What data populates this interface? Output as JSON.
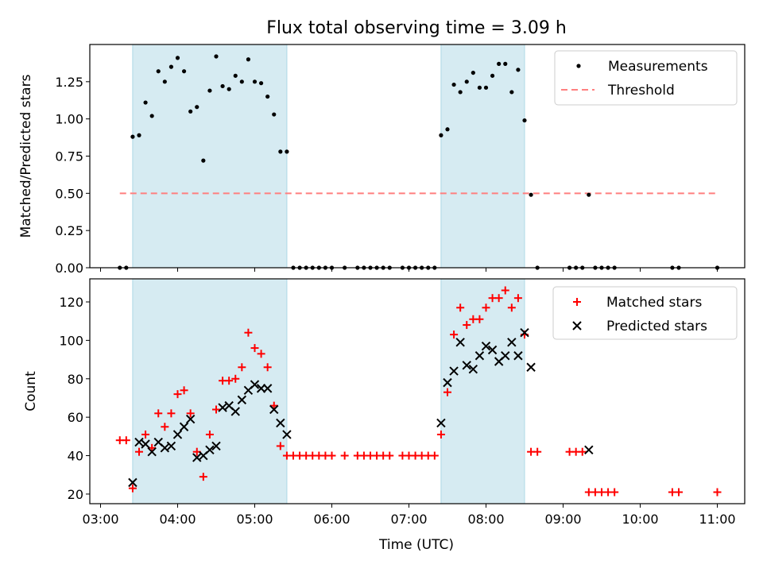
{
  "chart_data": [
    {
      "type": "scatter",
      "title": "Flux total observing time = 3.09 h",
      "ylabel": "Matched/Predicted stars",
      "ylim": [
        0,
        1.5
      ],
      "xlim": [
        "03:00",
        "11:00"
      ],
      "yticks": [
        "0.00",
        "0.25",
        "0.50",
        "0.75",
        "1.00",
        "1.25"
      ],
      "legend_placement": "top-right",
      "shaded_spans": [
        [
          "03:25",
          "05:25"
        ],
        [
          "07:25",
          "08:30"
        ]
      ],
      "threshold": {
        "name": "Threshold",
        "value": 0.5,
        "x_range": [
          "03:15",
          "11:00"
        ],
        "color": "#ff7f7f"
      },
      "series": [
        {
          "name": "Measurements",
          "color": "#000000",
          "points": [
            [
              "03:15",
              0.0
            ],
            [
              "03:20",
              0.0
            ],
            [
              "03:25",
              0.88
            ],
            [
              "03:30",
              0.89
            ],
            [
              "03:35",
              1.11
            ],
            [
              "03:40",
              1.02
            ],
            [
              "03:45",
              1.32
            ],
            [
              "03:50",
              1.25
            ],
            [
              "03:55",
              1.35
            ],
            [
              "04:00",
              1.41
            ],
            [
              "04:05",
              1.32
            ],
            [
              "04:10",
              1.05
            ],
            [
              "04:15",
              1.08
            ],
            [
              "04:20",
              0.72
            ],
            [
              "04:25",
              1.19
            ],
            [
              "04:30",
              1.42
            ],
            [
              "04:35",
              1.22
            ],
            [
              "04:40",
              1.2
            ],
            [
              "04:45",
              1.29
            ],
            [
              "04:50",
              1.25
            ],
            [
              "04:55",
              1.4
            ],
            [
              "05:00",
              1.25
            ],
            [
              "05:05",
              1.24
            ],
            [
              "05:10",
              1.15
            ],
            [
              "05:15",
              1.03
            ],
            [
              "05:20",
              0.78
            ],
            [
              "05:25",
              0.78
            ],
            [
              "05:30",
              0.0
            ],
            [
              "05:35",
              0.0
            ],
            [
              "05:40",
              0.0
            ],
            [
              "05:45",
              0.0
            ],
            [
              "05:50",
              0.0
            ],
            [
              "05:55",
              0.0
            ],
            [
              "06:00",
              0.0
            ],
            [
              "06:10",
              0.0
            ],
            [
              "06:20",
              0.0
            ],
            [
              "06:25",
              0.0
            ],
            [
              "06:30",
              0.0
            ],
            [
              "06:35",
              0.0
            ],
            [
              "06:40",
              0.0
            ],
            [
              "06:45",
              0.0
            ],
            [
              "06:55",
              0.0
            ],
            [
              "07:00",
              0.0
            ],
            [
              "07:05",
              0.0
            ],
            [
              "07:10",
              0.0
            ],
            [
              "07:15",
              0.0
            ],
            [
              "07:20",
              0.0
            ],
            [
              "07:25",
              0.89
            ],
            [
              "07:30",
              0.93
            ],
            [
              "07:35",
              1.23
            ],
            [
              "07:40",
              1.18
            ],
            [
              "07:45",
              1.25
            ],
            [
              "07:50",
              1.31
            ],
            [
              "07:55",
              1.21
            ],
            [
              "08:00",
              1.21
            ],
            [
              "08:05",
              1.29
            ],
            [
              "08:10",
              1.37
            ],
            [
              "08:15",
              1.37
            ],
            [
              "08:20",
              1.18
            ],
            [
              "08:25",
              1.33
            ],
            [
              "08:30",
              0.99
            ],
            [
              "08:35",
              0.49
            ],
            [
              "08:40",
              0.0
            ],
            [
              "09:05",
              0.0
            ],
            [
              "09:10",
              0.0
            ],
            [
              "09:15",
              0.0
            ],
            [
              "09:20",
              0.49
            ],
            [
              "09:25",
              0.0
            ],
            [
              "09:30",
              0.0
            ],
            [
              "09:35",
              0.0
            ],
            [
              "09:40",
              0.0
            ],
            [
              "10:25",
              0.0
            ],
            [
              "10:30",
              0.0
            ],
            [
              "11:00",
              0.0
            ]
          ]
        }
      ]
    },
    {
      "type": "scatter",
      "xlabel": "Time (UTC)",
      "ylabel": "Count",
      "ylim": [
        15,
        132
      ],
      "xlim": [
        "03:00",
        "11:00"
      ],
      "yticks": [
        "20",
        "40",
        "60",
        "80",
        "100",
        "120"
      ],
      "xticks": [
        "03:00",
        "04:00",
        "05:00",
        "06:00",
        "07:00",
        "08:00",
        "09:00",
        "10:00",
        "11:00"
      ],
      "legend_placement": "top-right",
      "shaded_spans": [
        [
          "03:25",
          "05:25"
        ],
        [
          "07:25",
          "08:30"
        ]
      ],
      "series": [
        {
          "name": "Matched stars",
          "color": "#ff0000",
          "marker": "plus",
          "points": [
            [
              "03:15",
              48
            ],
            [
              "03:20",
              48
            ],
            [
              "03:25",
              23
            ],
            [
              "03:30",
              42
            ],
            [
              "03:35",
              51
            ],
            [
              "03:40",
              44
            ],
            [
              "03:45",
              62
            ],
            [
              "03:50",
              55
            ],
            [
              "03:55",
              62
            ],
            [
              "04:00",
              72
            ],
            [
              "04:05",
              74
            ],
            [
              "04:10",
              62
            ],
            [
              "04:15",
              42
            ],
            [
              "04:20",
              29
            ],
            [
              "04:25",
              51
            ],
            [
              "04:30",
              64
            ],
            [
              "04:35",
              79
            ],
            [
              "04:40",
              79
            ],
            [
              "04:45",
              80
            ],
            [
              "04:50",
              86
            ],
            [
              "04:55",
              104
            ],
            [
              "05:00",
              96
            ],
            [
              "05:05",
              93
            ],
            [
              "05:10",
              86
            ],
            [
              "05:15",
              66
            ],
            [
              "05:20",
              45
            ],
            [
              "05:25",
              40
            ],
            [
              "05:30",
              40
            ],
            [
              "05:35",
              40
            ],
            [
              "05:40",
              40
            ],
            [
              "05:45",
              40
            ],
            [
              "05:50",
              40
            ],
            [
              "05:55",
              40
            ],
            [
              "06:00",
              40
            ],
            [
              "06:10",
              40
            ],
            [
              "06:20",
              40
            ],
            [
              "06:25",
              40
            ],
            [
              "06:30",
              40
            ],
            [
              "06:35",
              40
            ],
            [
              "06:40",
              40
            ],
            [
              "06:45",
              40
            ],
            [
              "06:55",
              40
            ],
            [
              "07:00",
              40
            ],
            [
              "07:05",
              40
            ],
            [
              "07:10",
              40
            ],
            [
              "07:15",
              40
            ],
            [
              "07:20",
              40
            ],
            [
              "07:25",
              51
            ],
            [
              "07:30",
              73
            ],
            [
              "07:35",
              103
            ],
            [
              "07:40",
              117
            ],
            [
              "07:45",
              108
            ],
            [
              "07:50",
              111
            ],
            [
              "07:55",
              111
            ],
            [
              "08:00",
              117
            ],
            [
              "08:05",
              122
            ],
            [
              "08:10",
              122
            ],
            [
              "08:15",
              126
            ],
            [
              "08:20",
              117
            ],
            [
              "08:25",
              122
            ],
            [
              "08:30",
              103
            ],
            [
              "08:35",
              42
            ],
            [
              "08:40",
              42
            ],
            [
              "09:05",
              42
            ],
            [
              "09:10",
              42
            ],
            [
              "09:15",
              42
            ],
            [
              "09:20",
              21
            ],
            [
              "09:25",
              21
            ],
            [
              "09:30",
              21
            ],
            [
              "09:35",
              21
            ],
            [
              "09:40",
              21
            ],
            [
              "10:25",
              21
            ],
            [
              "10:30",
              21
            ],
            [
              "11:00",
              21
            ]
          ]
        },
        {
          "name": "Predicted stars",
          "color": "#000000",
          "marker": "x",
          "points": [
            [
              "03:25",
              26
            ],
            [
              "03:30",
              47
            ],
            [
              "03:35",
              46
            ],
            [
              "03:40",
              42
            ],
            [
              "03:45",
              47
            ],
            [
              "03:50",
              44
            ],
            [
              "03:55",
              45
            ],
            [
              "04:00",
              51
            ],
            [
              "04:05",
              55
            ],
            [
              "04:10",
              59
            ],
            [
              "04:15",
              39
            ],
            [
              "04:20",
              40
            ],
            [
              "04:25",
              43
            ],
            [
              "04:30",
              45
            ],
            [
              "04:35",
              65
            ],
            [
              "04:40",
              66
            ],
            [
              "04:45",
              63
            ],
            [
              "04:50",
              69
            ],
            [
              "04:55",
              74
            ],
            [
              "05:00",
              77
            ],
            [
              "05:05",
              75
            ],
            [
              "05:10",
              75
            ],
            [
              "05:15",
              64
            ],
            [
              "05:20",
              57
            ],
            [
              "05:25",
              51
            ],
            [
              "07:25",
              57
            ],
            [
              "07:30",
              78
            ],
            [
              "07:35",
              84
            ],
            [
              "07:40",
              99
            ],
            [
              "07:45",
              87
            ],
            [
              "07:50",
              85
            ],
            [
              "07:55",
              92
            ],
            [
              "08:00",
              97
            ],
            [
              "08:05",
              95
            ],
            [
              "08:10",
              89
            ],
            [
              "08:15",
              92
            ],
            [
              "08:20",
              99
            ],
            [
              "08:25",
              92
            ],
            [
              "08:30",
              104
            ],
            [
              "08:35",
              86
            ],
            [
              "09:20",
              43
            ]
          ]
        }
      ]
    }
  ]
}
